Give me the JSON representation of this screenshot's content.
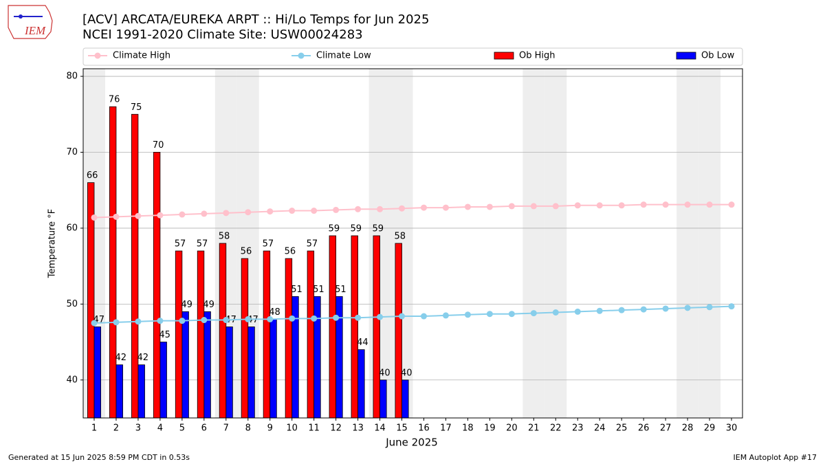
{
  "chart_data": {
    "type": "combo",
    "logo_text": "IEM",
    "title": "[ACV] ARCATA/EUREKA ARPT :: Hi/Lo Temps for Jun 2025",
    "subtitle": "NCEI 1991-2020 Climate Site: USW00024283",
    "x_label": "June 2025",
    "y_label": "Temperature °F",
    "footer_left": "Generated at 15 Jun 2025 8:59 PM CDT in 0.53s",
    "footer_right": "IEM Autoplot App #17",
    "x": [
      1,
      2,
      3,
      4,
      5,
      6,
      7,
      8,
      9,
      10,
      11,
      12,
      13,
      14,
      15,
      16,
      17,
      18,
      19,
      20,
      21,
      22,
      23,
      24,
      25,
      26,
      27,
      28,
      29,
      30
    ],
    "xlim": [
      0.5,
      30.5
    ],
    "xticks": [
      1,
      2,
      3,
      4,
      5,
      6,
      7,
      8,
      9,
      10,
      11,
      12,
      13,
      14,
      15,
      16,
      17,
      18,
      19,
      20,
      21,
      22,
      23,
      24,
      25,
      26,
      27,
      28,
      29,
      30
    ],
    "ylim": [
      35,
      81
    ],
    "yticks": [
      40,
      50,
      60,
      70,
      80
    ],
    "grid": true,
    "shaded_days": [
      1,
      7,
      8,
      14,
      15,
      21,
      22,
      28,
      29
    ],
    "series": [
      {
        "name": "Climate High",
        "type": "line",
        "color": "#ffc0cb",
        "values": [
          61.4,
          61.5,
          61.6,
          61.7,
          61.8,
          61.9,
          62.0,
          62.1,
          62.2,
          62.3,
          62.3,
          62.4,
          62.5,
          62.5,
          62.6,
          62.7,
          62.7,
          62.8,
          62.8,
          62.9,
          62.9,
          62.9,
          63.0,
          63.0,
          63.0,
          63.1,
          63.1,
          63.1,
          63.1,
          63.1
        ]
      },
      {
        "name": "Climate Low",
        "type": "line",
        "color": "#87ceeb",
        "values": [
          47.5,
          47.6,
          47.7,
          47.8,
          47.8,
          47.9,
          47.9,
          48.0,
          48.0,
          48.1,
          48.1,
          48.2,
          48.2,
          48.3,
          48.4,
          48.4,
          48.5,
          48.6,
          48.7,
          48.7,
          48.8,
          48.9,
          49.0,
          49.1,
          49.2,
          49.3,
          49.4,
          49.5,
          49.6,
          49.7
        ]
      },
      {
        "name": "Ob High",
        "type": "bar",
        "color": "#ff0000",
        "values": [
          66,
          76,
          75,
          70,
          57,
          57,
          58,
          56,
          57,
          56,
          57,
          59,
          59,
          59,
          58,
          null,
          null,
          null,
          null,
          null,
          null,
          null,
          null,
          null,
          null,
          null,
          null,
          null,
          null,
          null
        ]
      },
      {
        "name": "Ob Low",
        "type": "bar",
        "color": "#0000ff",
        "values": [
          47,
          42,
          42,
          45,
          49,
          49,
          47,
          47,
          48,
          51,
          51,
          51,
          44,
          40,
          40,
          null,
          null,
          null,
          null,
          null,
          null,
          null,
          null,
          null,
          null,
          null,
          null,
          null,
          null,
          null
        ]
      }
    ]
  }
}
